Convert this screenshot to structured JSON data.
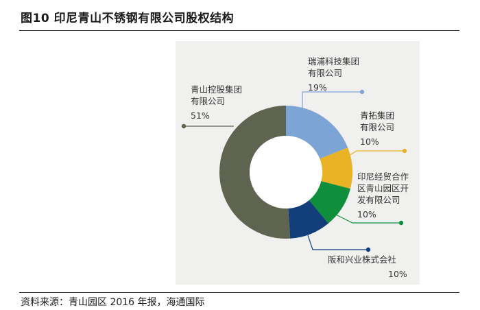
{
  "figure": {
    "title": "图10 印尼青山不锈钢有限公司股权结构",
    "source": "资料来源：青山园区 2016 年报，海通国际"
  },
  "chart_data": {
    "type": "pie",
    "variant": "donut",
    "start": "12 o'clock",
    "direction": "clockwise",
    "slices": [
      {
        "lines": [
          "瑞浦科技集团",
          "有限公司"
        ],
        "percent_label": "19%",
        "value": 19,
        "color": "#7ca5d6"
      },
      {
        "lines": [
          "青拓集团",
          "有限公司"
        ],
        "percent_label": "10%",
        "value": 10,
        "color": "#eab325"
      },
      {
        "lines": [
          "印尼经贸合作",
          "区青山园区开",
          "发有限公司"
        ],
        "percent_label": "10%",
        "value": 10,
        "color": "#0f8e3b"
      },
      {
        "lines": [
          "阪和兴业株式会社"
        ],
        "percent_label": "10%",
        "value": 10,
        "color": "#123e7a"
      },
      {
        "lines": [
          "青山控股集团",
          "有限公司"
        ],
        "percent_label": "51%",
        "value": 51,
        "color": "#5e6450"
      }
    ]
  }
}
